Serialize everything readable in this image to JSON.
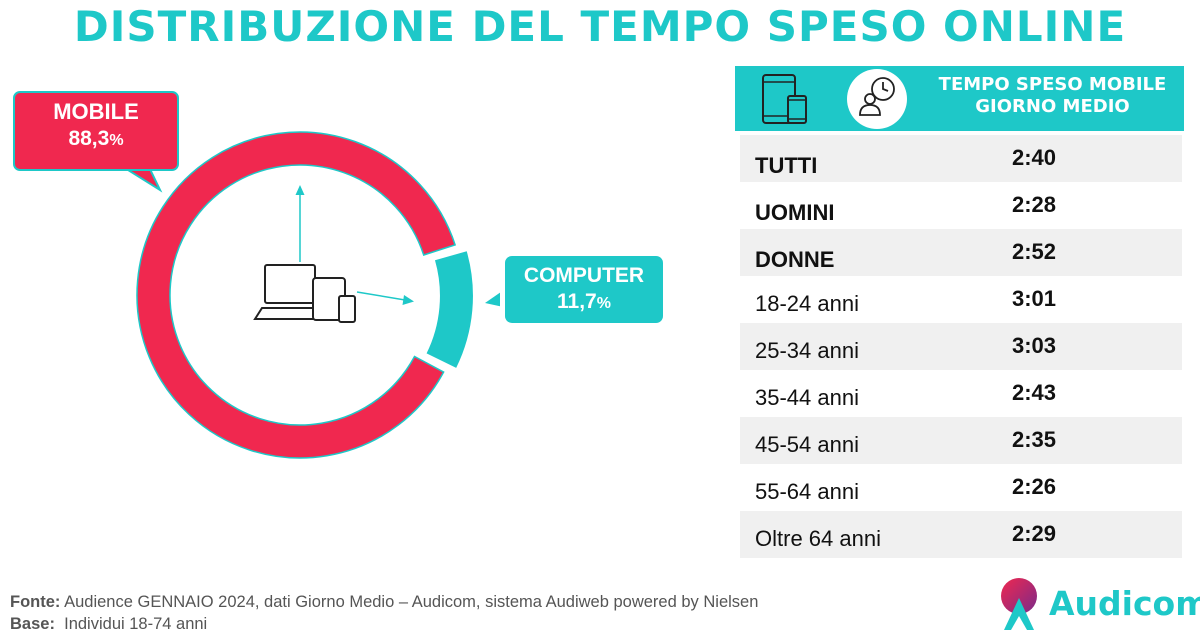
{
  "title": "DISTRIBUZIONE DEL TEMPO SPESO ONLINE",
  "chart_data": {
    "type": "pie",
    "slices": [
      {
        "name": "MOBILE",
        "value": 88.3,
        "label": "88,3",
        "color": "#f0284f"
      },
      {
        "name": "COMPUTER",
        "value": 11.7,
        "label": "11,7",
        "color": "#1ec8c8"
      }
    ],
    "percent_sign": "%",
    "center_icon": "devices-icon"
  },
  "table": {
    "header_title": "TEMPO SPESO MOBILE GIORNO MEDIO",
    "header_icons": [
      "tablet-phone-icon",
      "person-clock-icon"
    ],
    "rows": [
      {
        "label": "TUTTI",
        "value": "2:40",
        "bold": true
      },
      {
        "label": "UOMINI",
        "value": "2:28",
        "bold": true
      },
      {
        "label": "DONNE",
        "value": "2:52",
        "bold": true
      },
      {
        "label": "18-24 anni",
        "value": "3:01",
        "bold": false
      },
      {
        "label": "25-34 anni",
        "value": "3:03",
        "bold": false
      },
      {
        "label": "35-44 anni",
        "value": "2:43",
        "bold": false
      },
      {
        "label": "45-54 anni",
        "value": "2:35",
        "bold": false
      },
      {
        "label": "55-64 anni",
        "value": "2:26",
        "bold": false
      },
      {
        "label": "Oltre 64 anni",
        "value": "2:29",
        "bold": false
      }
    ]
  },
  "footer": {
    "source_label": "Fonte:",
    "source_text": "Audience GENNAIO 2024, dati Giorno Medio – Audicom, sistema Audiweb powered by Nielsen",
    "base_label": "Base:",
    "base_text": "Individui 18-74 anni"
  },
  "logo": {
    "text": "Audicom"
  },
  "colors": {
    "teal": "#1ec8c8",
    "red": "#f0284f"
  }
}
